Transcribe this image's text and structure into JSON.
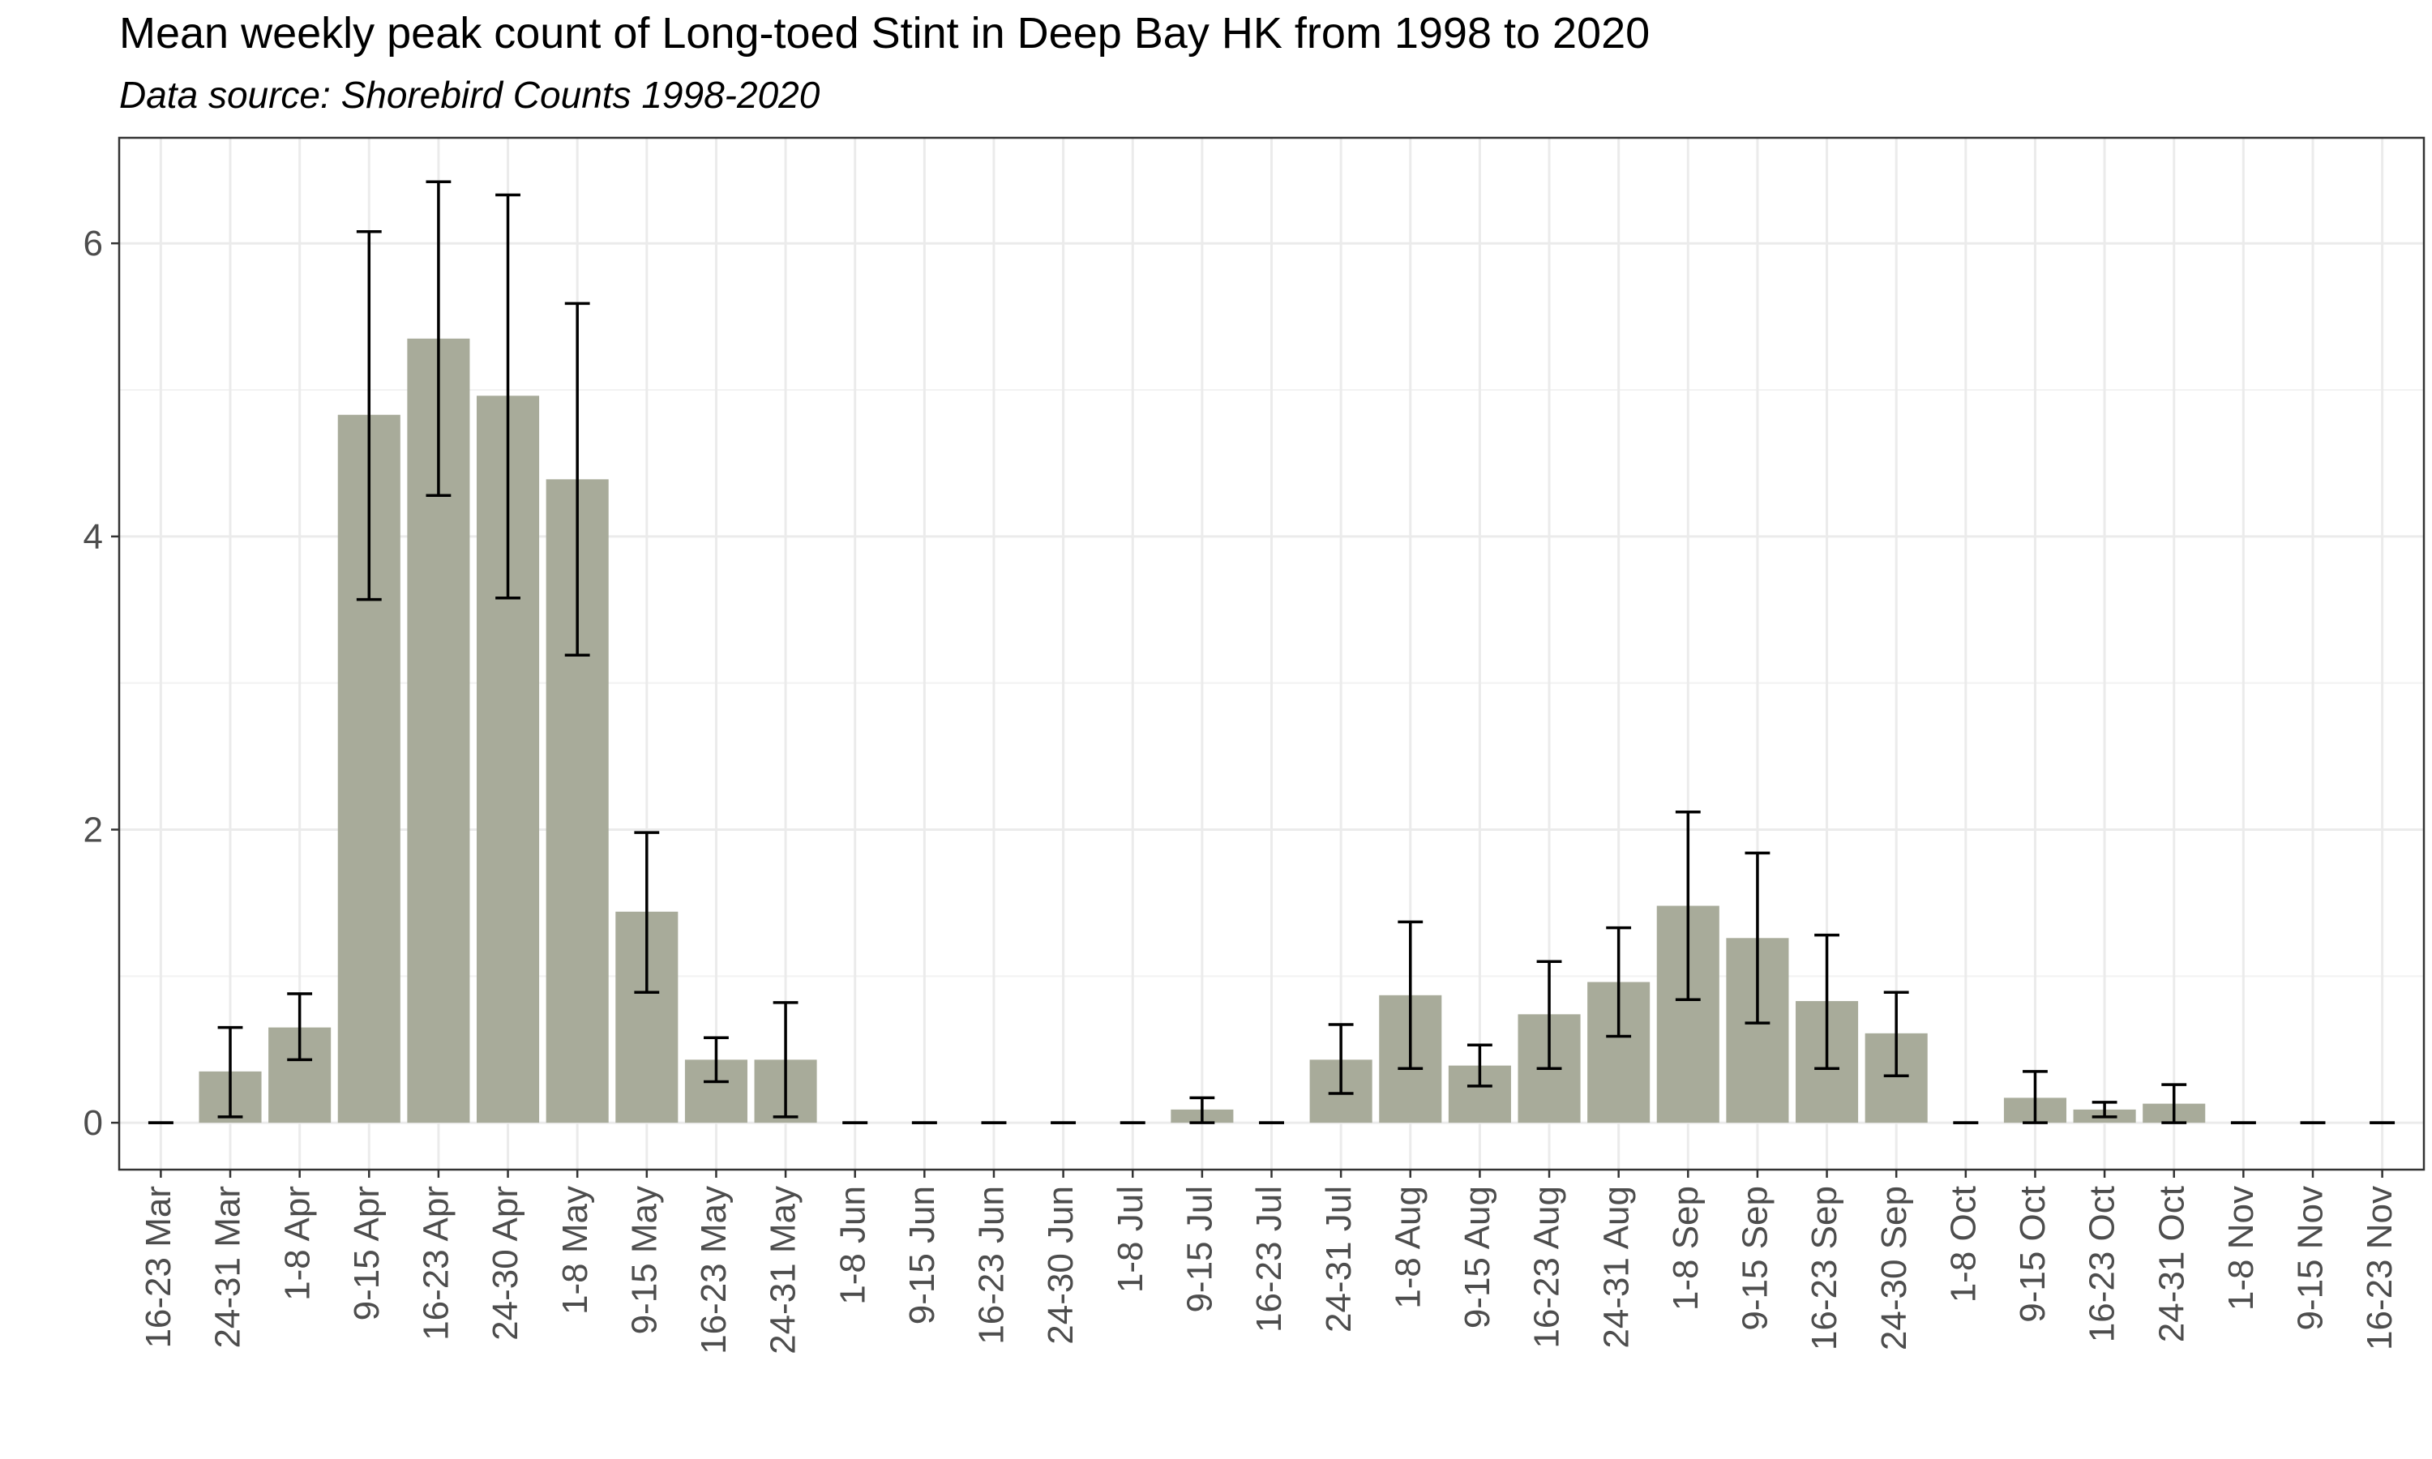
{
  "chart_data": {
    "type": "bar",
    "title": "Mean weekly peak count of Long-toed Stint in Deep Bay HK from 1998 to 2020",
    "subtitle": "Data source: Shorebird Counts 1998-2020",
    "xlabel": "",
    "ylabel": "",
    "ylim": [
      -0.32,
      6.72
    ],
    "yticks": [
      0,
      2,
      4,
      6
    ],
    "grid": true,
    "bar_color": "#a8ab9a",
    "errorbar_color": "#000000",
    "categories": [
      "16-23 Mar",
      "24-31 Mar",
      "1-8 Apr",
      "9-15 Apr",
      "16-23 Apr",
      "24-30 Apr",
      "1-8 May",
      "9-15 May",
      "16-23 May",
      "24-31 May",
      "1-8 Jun",
      "9-15 Jun",
      "16-23 Jun",
      "24-30 Jun",
      "1-8 Jul",
      "9-15 Jul",
      "16-23 Jul",
      "24-31 Jul",
      "1-8 Aug",
      "9-15 Aug",
      "16-23 Aug",
      "24-31 Aug",
      "1-8 Sep",
      "9-15 Sep",
      "16-23 Sep",
      "24-30 Sep",
      "1-8 Oct",
      "9-15 Oct",
      "16-23 Oct",
      "24-31 Oct",
      "1-8 Nov",
      "9-15 Nov",
      "16-23 Nov"
    ],
    "values": [
      0,
      0.35,
      0.65,
      4.83,
      5.35,
      4.96,
      4.39,
      1.44,
      0.43,
      0.43,
      0,
      0,
      0,
      0,
      0,
      0.09,
      0,
      0.43,
      0.87,
      0.39,
      0.74,
      0.96,
      1.48,
      1.26,
      0.83,
      0.61,
      0,
      0.17,
      0.09,
      0.13,
      0,
      0,
      0
    ],
    "error_low": [
      0,
      0.04,
      0.43,
      3.57,
      4.28,
      3.58,
      3.19,
      0.89,
      0.28,
      0.04,
      0,
      0,
      0,
      0,
      0,
      0.0,
      0,
      0.2,
      0.37,
      0.25,
      0.37,
      0.59,
      0.84,
      0.68,
      0.37,
      0.32,
      0,
      0.0,
      0.04,
      0.0,
      0,
      0,
      0
    ],
    "error_high": [
      0,
      0.65,
      0.88,
      6.08,
      6.42,
      6.33,
      5.59,
      1.98,
      0.58,
      0.82,
      0,
      0,
      0,
      0,
      0,
      0.17,
      0,
      0.67,
      1.37,
      0.53,
      1.1,
      1.33,
      2.12,
      1.84,
      1.28,
      0.89,
      0,
      0.35,
      0.14,
      0.26,
      0,
      0,
      0
    ]
  }
}
